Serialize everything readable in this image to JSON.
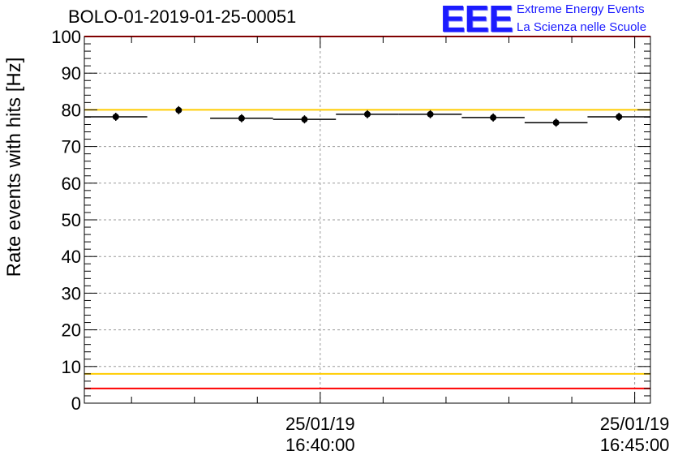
{
  "chart_data": {
    "type": "scatter",
    "title": "BOLO-01-2019-01-25-00051",
    "xlabel": "",
    "ylabel": "Rate events with hits [Hz]",
    "ylim": [
      0,
      100
    ],
    "yticks": [
      "0",
      "10",
      "20",
      "30",
      "40",
      "50",
      "60",
      "70",
      "80",
      "90",
      "100"
    ],
    "xticks": [
      {
        "line1": "25/01/19",
        "line2": "16:40:00"
      },
      {
        "line1": "25/01/19",
        "line2": "16:45:00"
      }
    ],
    "xlim_minutes": [
      -3.75,
      5.25
    ],
    "grid": true,
    "series": [
      {
        "x_minutes": [
          -3.25,
          -2.25,
          -1.25,
          -0.25,
          0.75,
          1.75,
          2.75,
          3.75,
          4.75
        ],
        "x_halfwidth_minutes": [
          0.5,
          0.0,
          0.5,
          0.5,
          0.5,
          0.5,
          0.5,
          0.5,
          0.5
        ],
        "y": [
          78.1,
          79.9,
          77.7,
          77.4,
          78.8,
          78.8,
          77.9,
          76.5,
          78.1
        ]
      }
    ],
    "reference_lines": [
      {
        "y": 100,
        "color": "#ff0000"
      },
      {
        "y": 80,
        "color": "#ffcc00"
      },
      {
        "y": 8,
        "color": "#ffcc00"
      },
      {
        "y": 4,
        "color": "#ff0000"
      }
    ]
  },
  "logo": {
    "mark": "EEE",
    "line1": "Extreme Energy Events",
    "line2": "La Scienza nelle Scuole"
  }
}
